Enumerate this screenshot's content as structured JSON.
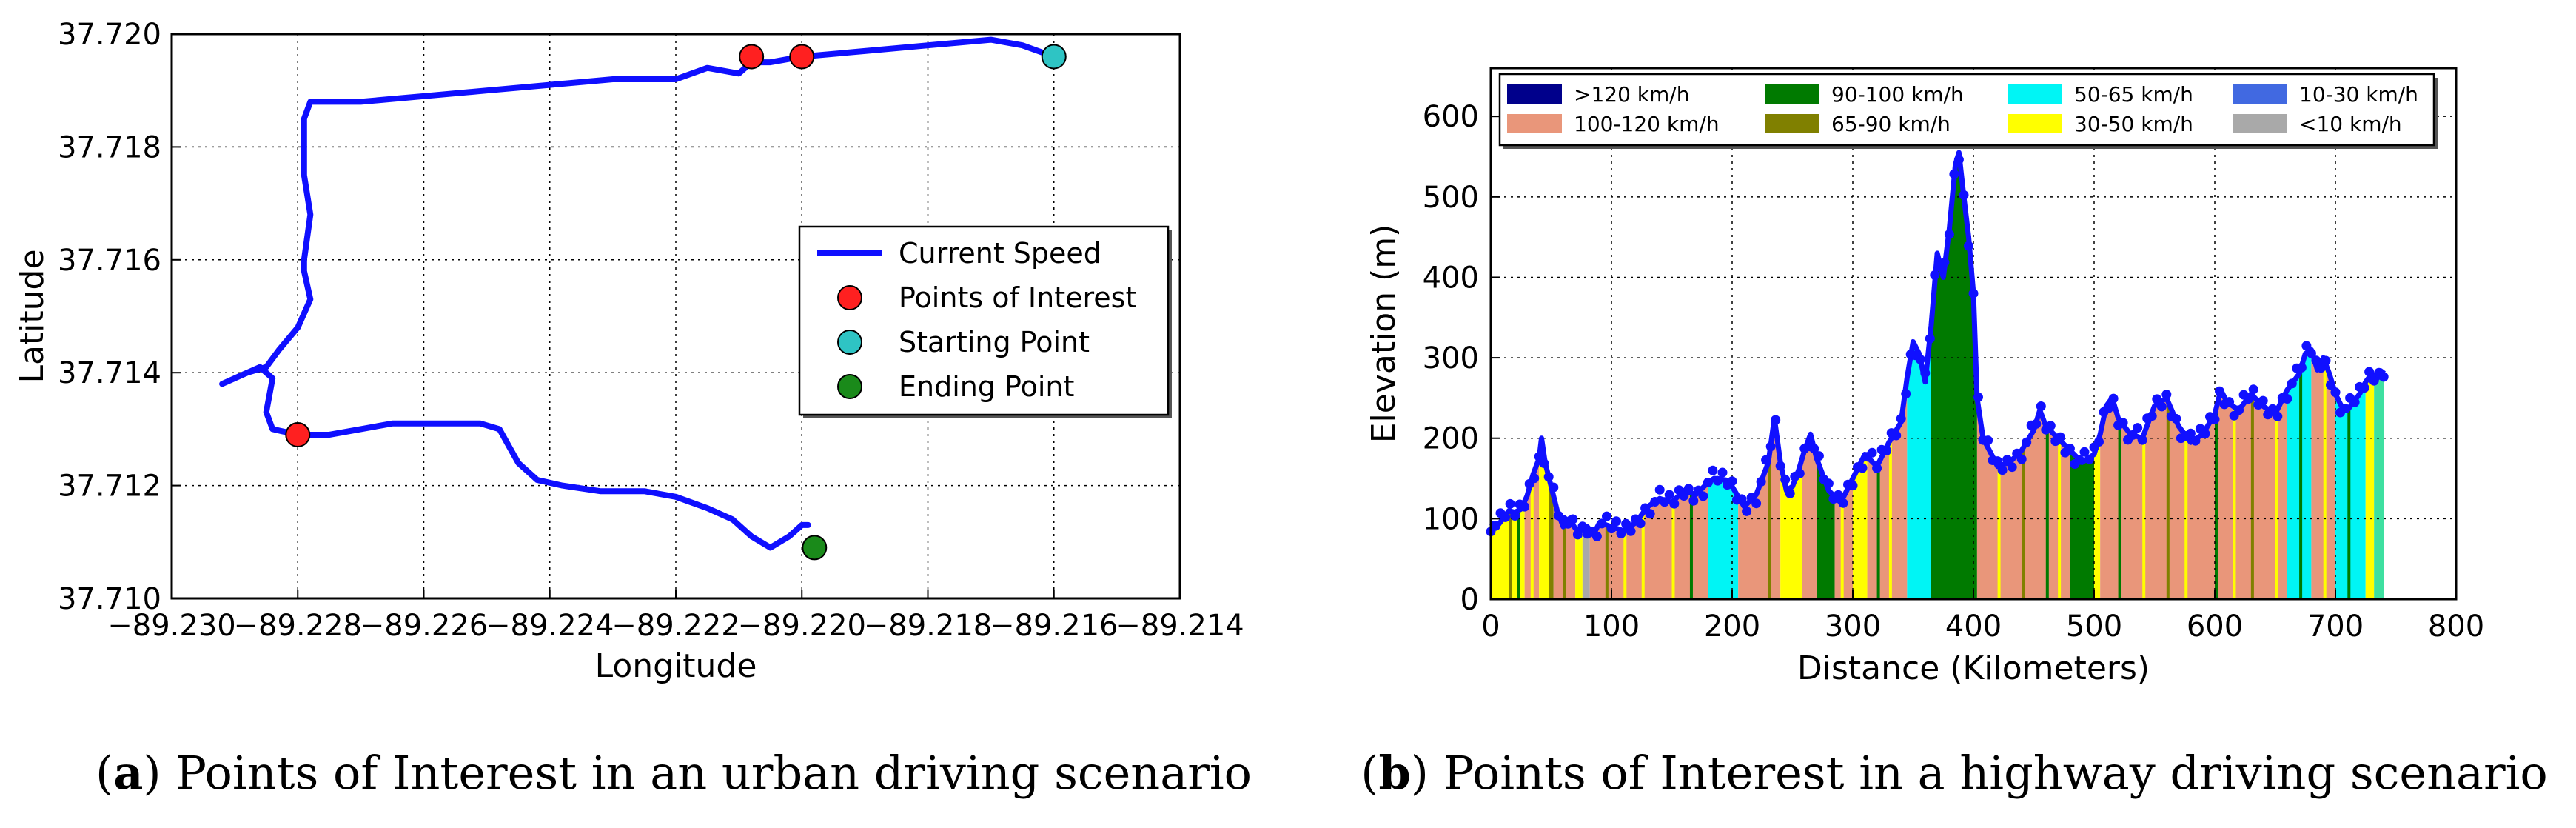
{
  "chart_data": [
    {
      "type": "line",
      "panel_letter": "a",
      "caption": "Points of Interest in an urban driving scenario",
      "xlabel": "Longitude",
      "ylabel": "Latitude",
      "xlim": [
        -89.23,
        -89.214
      ],
      "ylim": [
        37.71,
        37.72
      ],
      "xticks": [
        -89.23,
        -89.228,
        -89.226,
        -89.224,
        -89.222,
        -89.22,
        -89.218,
        -89.216,
        -89.214
      ],
      "xtick_labels": [
        "−89.230",
        "−89.228",
        "−89.226",
        "−89.224",
        "−89.222",
        "−89.220",
        "−89.218",
        "−89.216",
        "−89.214"
      ],
      "yticks": [
        37.71,
        37.712,
        37.714,
        37.716,
        37.718,
        37.72
      ],
      "ytick_labels": [
        "37.710",
        "37.712",
        "37.714",
        "37.716",
        "37.718",
        "37.720"
      ],
      "grid": true,
      "legend_position": "center-right",
      "legend": [
        "Current Speed",
        "Points of Interest",
        "Starting Point",
        "Ending Point"
      ],
      "colors": {
        "route": "#0f0fff",
        "poi": "#ff2020",
        "start": "#2ec4c4",
        "end": "#1a8a1a"
      },
      "route": [
        [
          -89.216,
          37.7196
        ],
        [
          -89.2165,
          37.7198
        ],
        [
          -89.217,
          37.7199
        ],
        [
          -89.218,
          37.7198
        ],
        [
          -89.219,
          37.7197
        ],
        [
          -89.22,
          37.7196
        ],
        [
          -89.2205,
          37.7195
        ],
        [
          -89.2208,
          37.7195
        ],
        [
          -89.221,
          37.7193
        ],
        [
          -89.2215,
          37.7194
        ],
        [
          -89.222,
          37.7192
        ],
        [
          -89.223,
          37.7192
        ],
        [
          -89.224,
          37.7191
        ],
        [
          -89.225,
          37.719
        ],
        [
          -89.226,
          37.7189
        ],
        [
          -89.227,
          37.7188
        ],
        [
          -89.2278,
          37.7188
        ],
        [
          -89.2279,
          37.7185
        ],
        [
          -89.2279,
          37.7175
        ],
        [
          -89.2278,
          37.7168
        ],
        [
          -89.2279,
          37.716
        ],
        [
          -89.2279,
          37.7158
        ],
        [
          -89.2278,
          37.7153
        ],
        [
          -89.228,
          37.7148
        ],
        [
          -89.2283,
          37.7144
        ],
        [
          -89.2285,
          37.7141
        ],
        [
          -89.2288,
          37.714
        ],
        [
          -89.2292,
          37.7138
        ],
        [
          -89.2286,
          37.7141
        ],
        [
          -89.2284,
          37.7139
        ],
        [
          -89.2285,
          37.7133
        ],
        [
          -89.2284,
          37.713
        ],
        [
          -89.228,
          37.7129
        ],
        [
          -89.2275,
          37.7129
        ],
        [
          -89.227,
          37.713
        ],
        [
          -89.2265,
          37.7131
        ],
        [
          -89.226,
          37.7131
        ],
        [
          -89.2255,
          37.7131
        ],
        [
          -89.2251,
          37.7131
        ],
        [
          -89.2248,
          37.713
        ],
        [
          -89.2246,
          37.7126
        ],
        [
          -89.2245,
          37.7124
        ],
        [
          -89.2242,
          37.7121
        ],
        [
          -89.2238,
          37.712
        ],
        [
          -89.2232,
          37.7119
        ],
        [
          -89.2225,
          37.7119
        ],
        [
          -89.222,
          37.7118
        ],
        [
          -89.2215,
          37.7116
        ],
        [
          -89.2211,
          37.7114
        ],
        [
          -89.2208,
          37.7111
        ],
        [
          -89.2205,
          37.7109
        ],
        [
          -89.2202,
          37.7111
        ],
        [
          -89.2201,
          37.7112
        ],
        [
          -89.22,
          37.7113
        ],
        [
          -89.2199,
          37.7113
        ]
      ],
      "points_of_interest": [
        [
          -89.2208,
          37.7196
        ],
        [
          -89.22,
          37.7196
        ],
        [
          -89.228,
          37.7129
        ]
      ],
      "starting_point": [
        -89.216,
        37.7196
      ],
      "ending_point": [
        -89.2198,
        37.7109
      ]
    },
    {
      "type": "area",
      "panel_letter": "b",
      "caption": "Points of Interest in a highway driving scenario",
      "xlabel": "Distance (Kilometers)",
      "ylabel": "Elevation (m)",
      "xlim": [
        0,
        800
      ],
      "ylim": [
        0,
        660
      ],
      "xticks": [
        0,
        100,
        200,
        300,
        400,
        500,
        600,
        700,
        800
      ],
      "yticks": [
        0,
        100,
        200,
        300,
        400,
        500,
        600
      ],
      "grid": true,
      "legend_position": "top",
      "legend": [
        {
          "label": ">120 km/h",
          "color": "#00008b"
        },
        {
          "label": "90-100 km/h",
          "color": "#007a00"
        },
        {
          "label": "50-65 km/h",
          "color": "#00f5f5"
        },
        {
          "label": "10-30 km/h",
          "color": "#4169e1"
        },
        {
          "label": "100-120 km/h",
          "color": "#e9967a"
        },
        {
          "label": "65-90 km/h",
          "color": "#808000"
        },
        {
          "label": "30-50 km/h",
          "color": "#ffff00"
        },
        {
          "label": "<10 km/h",
          "color": "#a9a9a9"
        }
      ],
      "line_color": "#1010ff",
      "profile": [
        [
          0,
          95
        ],
        [
          5,
          90
        ],
        [
          10,
          100
        ],
        [
          15,
          110
        ],
        [
          20,
          108
        ],
        [
          25,
          112
        ],
        [
          30,
          128
        ],
        [
          35,
          155
        ],
        [
          40,
          175
        ],
        [
          42,
          200
        ],
        [
          45,
          170
        ],
        [
          50,
          140
        ],
        [
          55,
          110
        ],
        [
          60,
          90
        ],
        [
          65,
          100
        ],
        [
          70,
          88
        ],
        [
          75,
          85
        ],
        [
          80,
          90
        ],
        [
          85,
          80
        ],
        [
          90,
          95
        ],
        [
          100,
          90
        ],
        [
          110,
          85
        ],
        [
          120,
          95
        ],
        [
          130,
          115
        ],
        [
          140,
          125
        ],
        [
          150,
          120
        ],
        [
          160,
          135
        ],
        [
          170,
          130
        ],
        [
          180,
          145
        ],
        [
          185,
          150
        ],
        [
          195,
          148
        ],
        [
          200,
          140
        ],
        [
          210,
          115
        ],
        [
          220,
          130
        ],
        [
          230,
          170
        ],
        [
          235,
          225
        ],
        [
          240,
          170
        ],
        [
          245,
          135
        ],
        [
          250,
          140
        ],
        [
          255,
          160
        ],
        [
          260,
          185
        ],
        [
          265,
          205
        ],
        [
          270,
          175
        ],
        [
          280,
          135
        ],
        [
          290,
          120
        ],
        [
          300,
          150
        ],
        [
          310,
          180
        ],
        [
          320,
          165
        ],
        [
          330,
          195
        ],
        [
          340,
          220
        ],
        [
          345,
          275
        ],
        [
          350,
          320
        ],
        [
          355,
          305
        ],
        [
          360,
          270
        ],
        [
          365,
          340
        ],
        [
          370,
          430
        ],
        [
          375,
          400
        ],
        [
          380,
          460
        ],
        [
          385,
          540
        ],
        [
          388,
          555
        ],
        [
          392,
          500
        ],
        [
          396,
          450
        ],
        [
          400,
          380
        ],
        [
          403,
          250
        ],
        [
          408,
          200
        ],
        [
          415,
          180
        ],
        [
          420,
          165
        ],
        [
          430,
          170
        ],
        [
          440,
          185
        ],
        [
          450,
          210
        ],
        [
          455,
          235
        ],
        [
          460,
          215
        ],
        [
          470,
          200
        ],
        [
          480,
          185
        ],
        [
          490,
          170
        ],
        [
          500,
          180
        ],
        [
          505,
          205
        ],
        [
          510,
          240
        ],
        [
          515,
          250
        ],
        [
          520,
          225
        ],
        [
          530,
          205
        ],
        [
          540,
          200
        ],
        [
          550,
          240
        ],
        [
          560,
          250
        ],
        [
          570,
          215
        ],
        [
          580,
          195
        ],
        [
          590,
          205
        ],
        [
          600,
          230
        ],
        [
          605,
          260
        ],
        [
          610,
          245
        ],
        [
          620,
          235
        ],
        [
          630,
          255
        ],
        [
          640,
          240
        ],
        [
          650,
          230
        ],
        [
          660,
          260
        ],
        [
          670,
          280
        ],
        [
          675,
          305
        ],
        [
          680,
          310
        ],
        [
          685,
          285
        ],
        [
          690,
          300
        ],
        [
          695,
          280
        ],
        [
          700,
          255
        ],
        [
          705,
          240
        ],
        [
          710,
          235
        ],
        [
          715,
          245
        ],
        [
          720,
          255
        ],
        [
          725,
          270
        ],
        [
          730,
          280
        ],
        [
          735,
          275
        ],
        [
          740,
          285
        ]
      ],
      "speed_segments": [
        [
          0,
          28,
          "#ffff00"
        ],
        [
          28,
          40,
          "#e9967a"
        ],
        [
          40,
          48,
          "#ffff00"
        ],
        [
          48,
          52,
          "#808000"
        ],
        [
          52,
          70,
          "#e9967a"
        ],
        [
          70,
          76,
          "#ffff00"
        ],
        [
          76,
          82,
          "#a9a9a9"
        ],
        [
          82,
          180,
          "#e9967a"
        ],
        [
          180,
          205,
          "#00f5f5"
        ],
        [
          205,
          240,
          "#e9967a"
        ],
        [
          240,
          258,
          "#ffff00"
        ],
        [
          258,
          270,
          "#e9967a"
        ],
        [
          270,
          285,
          "#007a00"
        ],
        [
          285,
          300,
          "#e9967a"
        ],
        [
          300,
          312,
          "#ffff00"
        ],
        [
          312,
          345,
          "#e9967a"
        ],
        [
          345,
          365,
          "#00f5f5"
        ],
        [
          365,
          403,
          "#007a00"
        ],
        [
          403,
          480,
          "#e9967a"
        ],
        [
          480,
          500,
          "#007a00"
        ],
        [
          500,
          505,
          "#ffff00"
        ],
        [
          505,
          660,
          "#e9967a"
        ],
        [
          660,
          680,
          "#00f5f5"
        ],
        [
          680,
          700,
          "#e9967a"
        ],
        [
          700,
          725,
          "#00f5f5"
        ],
        [
          725,
          732,
          "#ffff00"
        ],
        [
          732,
          742,
          "#3ee0a0"
        ]
      ],
      "speed_lines": [
        [
          15,
          "#808000"
        ],
        [
          22,
          "#007a00"
        ],
        [
          33,
          "#ffff00"
        ],
        [
          60,
          "#808000"
        ],
        [
          95,
          "#808000"
        ],
        [
          110,
          "#ffff00"
        ],
        [
          125,
          "#ffff00"
        ],
        [
          150,
          "#ffff00"
        ],
        [
          165,
          "#007a00"
        ],
        [
          230,
          "#808000"
        ],
        [
          290,
          "#ffff00"
        ],
        [
          320,
          "#007a00"
        ],
        [
          330,
          "#ffff00"
        ],
        [
          420,
          "#ffff00"
        ],
        [
          440,
          "#808000"
        ],
        [
          460,
          "#007a00"
        ],
        [
          470,
          "#ffff00"
        ],
        [
          520,
          "#007a00"
        ],
        [
          540,
          "#ffff00"
        ],
        [
          560,
          "#808000"
        ],
        [
          575,
          "#ffff00"
        ],
        [
          600,
          "#007a00"
        ],
        [
          615,
          "#ffff00"
        ],
        [
          630,
          "#808000"
        ],
        [
          650,
          "#ffff00"
        ],
        [
          670,
          "#007a00"
        ],
        [
          690,
          "#ffff00"
        ],
        [
          710,
          "#007a00"
        ]
      ]
    }
  ]
}
